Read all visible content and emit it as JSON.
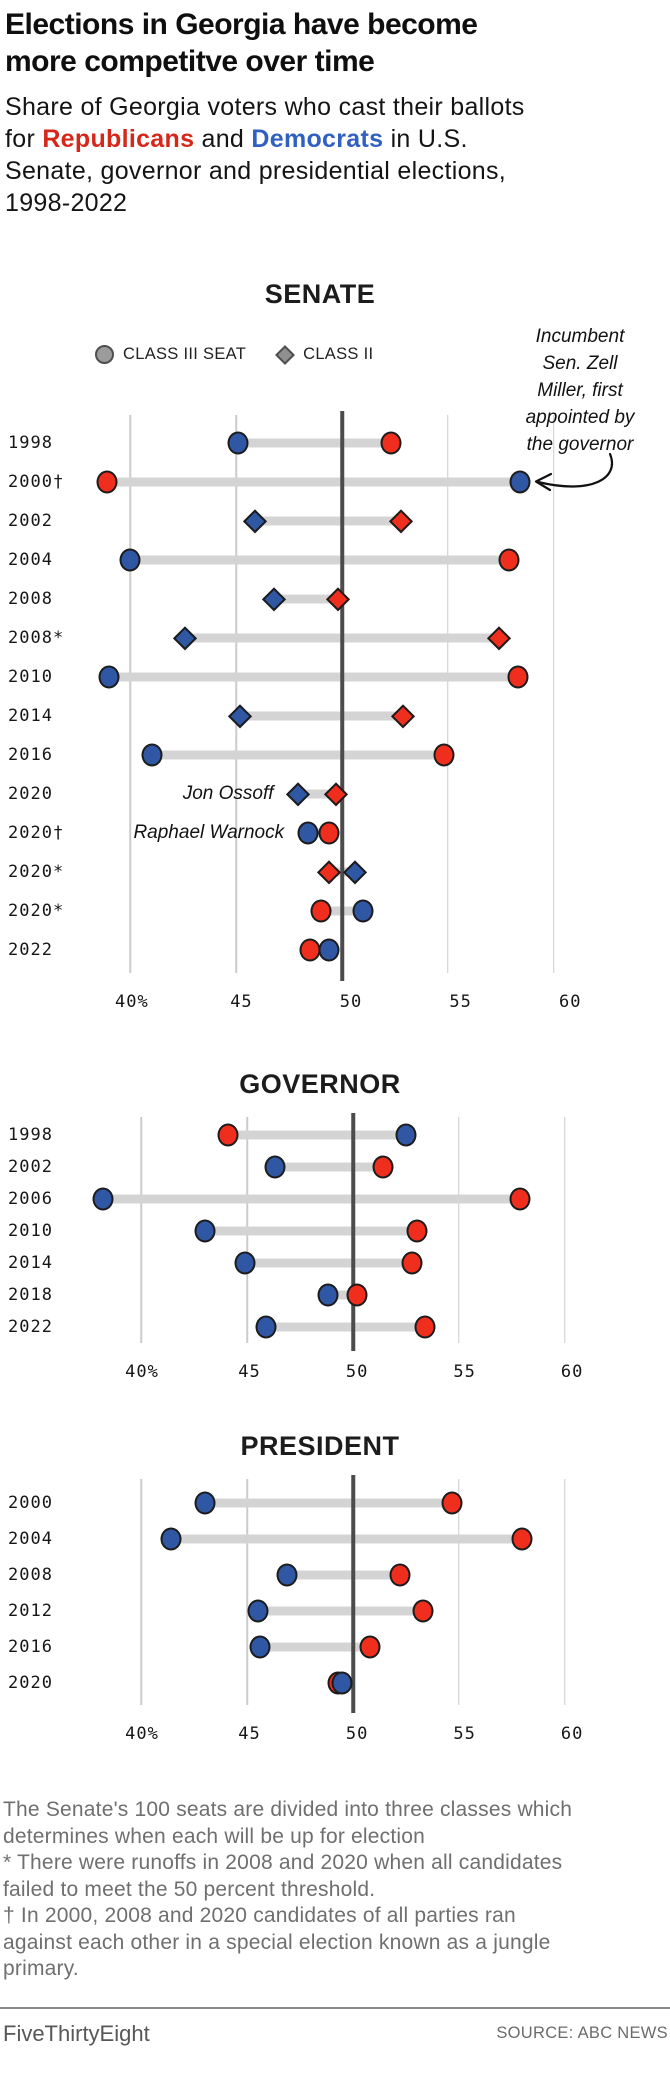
{
  "header": {
    "title_line1": "Elections in Georgia have become",
    "title_line2": "more competitve over time",
    "subtitle_prefix": "Share of Georgia voters who cast their ballots for ",
    "republicans_label": "Republicans",
    "and_label": " and ",
    "democrats_label": "Democrats",
    "subtitle_suffix": " in U.S. Senate, governor and presidential elections, 1998-2022"
  },
  "colors": {
    "republican": "#ef2e1d",
    "democrat": "#2f57a3",
    "republican_text": "#d6281a",
    "democrat_text": "#3060c0",
    "connector_gray": "#d4d4d4",
    "gridline_gray": "#cbcbcb",
    "fifty_line_dark": "#4b4b4b",
    "legend_gray": "#9c9c9c"
  },
  "chart_data": [
    {
      "type": "dumbbell",
      "title": "SENATE",
      "legend": [
        {
          "marker": "circle",
          "label": "CLASS III SEAT"
        },
        {
          "marker": "diamond",
          "label": "CLASS II"
        }
      ],
      "annotation": {
        "lines": [
          "Incumbent",
          "Sen. Zell",
          "Miller, first",
          "appointed by",
          "the governor"
        ],
        "target_year": "2000†"
      },
      "x_ticks": [
        {
          "value": 40,
          "label": "40%"
        },
        {
          "value": 45,
          "label": "45"
        },
        {
          "value": 50,
          "label": "50"
        },
        {
          "value": 55,
          "label": "55"
        },
        {
          "value": 60,
          "label": "60"
        }
      ],
      "xlim": [
        38,
        64.55
      ],
      "center_line": 50,
      "rows": [
        {
          "year": "1998",
          "marker": "circle",
          "dem": 45.1,
          "rep": 52.3
        },
        {
          "year": "2000†",
          "marker": "circle",
          "dem": 58.4,
          "rep": 38.9
        },
        {
          "year": "2002",
          "marker": "diamond",
          "dem": 45.9,
          "rep": 52.8
        },
        {
          "year": "2004",
          "marker": "circle",
          "dem": 40.0,
          "rep": 57.9
        },
        {
          "year": "2008",
          "marker": "diamond",
          "dem": 46.8,
          "rep": 49.8
        },
        {
          "year": "2008*",
          "marker": "diamond",
          "dem": 42.6,
          "rep": 57.4
        },
        {
          "year": "2010",
          "marker": "circle",
          "dem": 39.0,
          "rep": 58.3
        },
        {
          "year": "2014",
          "marker": "diamond",
          "dem": 45.2,
          "rep": 52.9
        },
        {
          "year": "2016",
          "marker": "circle",
          "dem": 41.0,
          "rep": 54.8
        },
        {
          "year": "2020",
          "marker": "diamond",
          "dem": 47.9,
          "rep": 49.7,
          "label": "Jon Ossoff"
        },
        {
          "year": "2020†",
          "marker": "circle",
          "dem": 48.4,
          "rep": 49.4,
          "label": "Raphael Warnock"
        },
        {
          "year": "2020*",
          "marker": "diamond",
          "dem": 50.6,
          "rep": 49.4
        },
        {
          "year": "2020*",
          "marker": "circle",
          "dem": 51.0,
          "rep": 49.0
        },
        {
          "year": "2022",
          "marker": "circle",
          "dem": 49.4,
          "rep": 48.5
        }
      ]
    },
    {
      "type": "dumbbell",
      "title": "GOVERNOR",
      "x_ticks": [
        {
          "value": 40,
          "label": "40%"
        },
        {
          "value": 45,
          "label": "45"
        },
        {
          "value": 50,
          "label": "50"
        },
        {
          "value": 55,
          "label": "55"
        },
        {
          "value": 60,
          "label": "60"
        }
      ],
      "xlim": [
        38,
        64.55
      ],
      "center_line": 50,
      "rows": [
        {
          "year": "1998",
          "marker": "circle",
          "dem": 52.5,
          "rep": 44.1
        },
        {
          "year": "2002",
          "marker": "circle",
          "dem": 46.3,
          "rep": 51.4
        },
        {
          "year": "2006",
          "marker": "circle",
          "dem": 38.2,
          "rep": 57.9
        },
        {
          "year": "2010",
          "marker": "circle",
          "dem": 43.0,
          "rep": 53.0
        },
        {
          "year": "2014",
          "marker": "circle",
          "dem": 44.9,
          "rep": 52.8
        },
        {
          "year": "2018",
          "marker": "circle",
          "dem": 48.8,
          "rep": 50.2
        },
        {
          "year": "2022",
          "marker": "circle",
          "dem": 45.9,
          "rep": 53.4
        }
      ]
    },
    {
      "type": "dumbbell",
      "title": "PRESIDENT",
      "x_ticks": [
        {
          "value": 40,
          "label": "40%"
        },
        {
          "value": 45,
          "label": "45"
        },
        {
          "value": 50,
          "label": "50"
        },
        {
          "value": 55,
          "label": "55"
        },
        {
          "value": 60,
          "label": "60"
        }
      ],
      "xlim": [
        38,
        64.55
      ],
      "center_line": 50,
      "rows": [
        {
          "year": "2000",
          "marker": "circle",
          "dem": 43.0,
          "rep": 54.7
        },
        {
          "year": "2004",
          "marker": "circle",
          "dem": 41.4,
          "rep": 58.0
        },
        {
          "year": "2008",
          "marker": "circle",
          "dem": 46.9,
          "rep": 52.2
        },
        {
          "year": "2012",
          "marker": "circle",
          "dem": 45.5,
          "rep": 53.3
        },
        {
          "year": "2016",
          "marker": "circle",
          "dem": 45.6,
          "rep": 50.8
        },
        {
          "year": "2020",
          "marker": "circle",
          "dem": 49.5,
          "rep": 49.3
        }
      ]
    }
  ],
  "footnotes": [
    "The Senate's 100 seats are divided into three classes which determines when each will be up for election",
    "* There were runoffs in 2008 and 2020 when all candidates failed to meet the 50 percent threshold.",
    "† In 2000, 2008 and 2020 candidates of all parties ran against each other in a special election known as a jungle primary."
  ],
  "footer": {
    "brand": "FiveThirtyEight",
    "source": "SOURCE: ABC NEWS"
  }
}
